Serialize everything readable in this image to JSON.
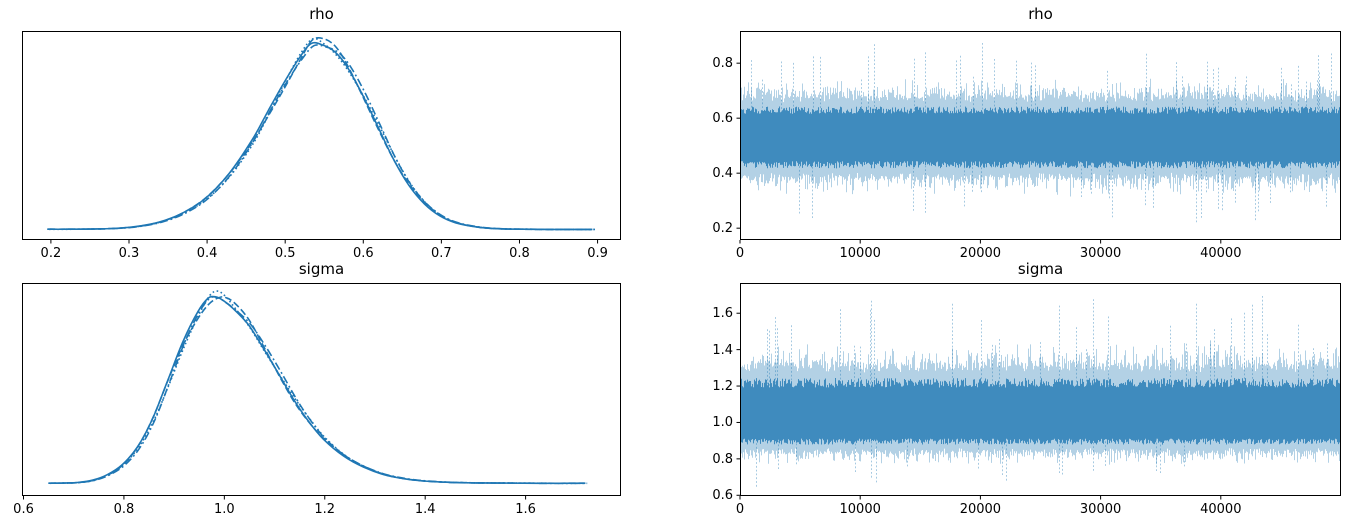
{
  "figure": {
    "background_color": "#ffffff",
    "text_color": "#000000",
    "spine_color": "#000000",
    "accent_color": "#1f77b4"
  },
  "chart_data": [
    {
      "type": "line",
      "id": "rho-density",
      "role": "posterior-kde",
      "title": "rho",
      "xlabel": "",
      "ylabel": "",
      "xlim": [
        0.163,
        0.93
      ],
      "xticks": [
        0.2,
        0.3,
        0.4,
        0.5,
        0.6,
        0.7,
        0.8,
        0.9
      ],
      "xtick_labels": [
        "0.2",
        "0.3",
        "0.4",
        "0.5",
        "0.6",
        "0.7",
        "0.8",
        "0.9"
      ],
      "yticks": [],
      "ytick_labels": [],
      "grid": false,
      "legend": "none",
      "n_chains": 4,
      "line_styles": [
        "solid",
        "dashed",
        "dotted",
        "dashdot"
      ],
      "line_color": "#1f77b4",
      "kde": {
        "x": [
          0.197,
          0.22,
          0.25,
          0.28,
          0.31,
          0.34,
          0.37,
          0.4,
          0.43,
          0.46,
          0.48,
          0.5,
          0.52,
          0.535,
          0.55,
          0.565,
          0.58,
          0.6,
          0.62,
          0.64,
          0.66,
          0.68,
          0.7,
          0.72,
          0.75,
          0.78,
          0.81,
          0.84,
          0.87,
          0.895
        ],
        "density": [
          0.004,
          0.004,
          0.005,
          0.008,
          0.018,
          0.042,
          0.09,
          0.17,
          0.3,
          0.48,
          0.63,
          0.78,
          0.92,
          1.0,
          0.99,
          0.95,
          0.87,
          0.72,
          0.55,
          0.38,
          0.24,
          0.14,
          0.075,
          0.038,
          0.014,
          0.006,
          0.004,
          0.003,
          0.003,
          0.003
        ],
        "peak_x": 0.535
      }
    },
    {
      "type": "line",
      "id": "rho-trace",
      "role": "mcmc-trace",
      "title": "rho",
      "xlabel": "",
      "ylabel": "",
      "xlim": [
        0,
        50000
      ],
      "xticks": [
        0,
        10000,
        20000,
        30000,
        40000
      ],
      "xtick_labels": [
        "0",
        "10000",
        "20000",
        "30000",
        "40000"
      ],
      "ylim": [
        0.157,
        0.917
      ],
      "yticks": [
        0.2,
        0.4,
        0.6,
        0.8
      ],
      "ytick_labels": [
        "0.2",
        "0.4",
        "0.6",
        "0.8"
      ],
      "grid": false,
      "legend": "none",
      "line_color": "#1f77b4",
      "trace": {
        "n_samples": 50000,
        "mean": 0.53,
        "sd": 0.075,
        "min": 0.197,
        "max": 0.895,
        "skew_top": 1.0,
        "skew_bottom": 1.0
      }
    },
    {
      "type": "line",
      "id": "sigma-density",
      "role": "posterior-kde",
      "title": "sigma",
      "xlabel": "",
      "ylabel": "",
      "xlim": [
        0.597,
        1.79
      ],
      "xticks": [
        0.6,
        0.8,
        1.0,
        1.2,
        1.4,
        1.6
      ],
      "xtick_labels": [
        "0.6",
        "0.8",
        "1.0",
        "1.2",
        "1.4",
        "1.6"
      ],
      "yticks": [],
      "ytick_labels": [],
      "grid": false,
      "legend": "none",
      "n_chains": 4,
      "line_styles": [
        "solid",
        "dashed",
        "dotted",
        "dashdot"
      ],
      "line_color": "#1f77b4",
      "kde": {
        "x": [
          0.652,
          0.68,
          0.71,
          0.74,
          0.77,
          0.8,
          0.83,
          0.86,
          0.89,
          0.92,
          0.95,
          0.97,
          0.985,
          1.0,
          1.02,
          1.05,
          1.08,
          1.11,
          1.14,
          1.17,
          1.2,
          1.24,
          1.28,
          1.32,
          1.36,
          1.4,
          1.45,
          1.5,
          1.56,
          1.63,
          1.72
        ],
        "density": [
          0.004,
          0.005,
          0.008,
          0.02,
          0.05,
          0.105,
          0.2,
          0.35,
          0.55,
          0.75,
          0.91,
          0.985,
          1.0,
          0.985,
          0.94,
          0.85,
          0.72,
          0.585,
          0.45,
          0.335,
          0.24,
          0.15,
          0.09,
          0.05,
          0.028,
          0.016,
          0.009,
          0.006,
          0.005,
          0.004,
          0.004
        ],
        "peak_x": 0.985
      }
    },
    {
      "type": "line",
      "id": "sigma-trace",
      "role": "mcmc-trace",
      "title": "sigma",
      "xlabel": "",
      "ylabel": "",
      "xlim": [
        0,
        50000
      ],
      "xticks": [
        0,
        10000,
        20000,
        30000,
        40000
      ],
      "xtick_labels": [
        "0",
        "10000",
        "20000",
        "30000",
        "40000"
      ],
      "ylim": [
        0.596,
        1.766
      ],
      "yticks": [
        0.6,
        0.8,
        1.0,
        1.2,
        1.4,
        1.6
      ],
      "ytick_labels": [
        "0.6",
        "0.8",
        "1.0",
        "1.2",
        "1.4",
        "1.6"
      ],
      "grid": false,
      "legend": "none",
      "line_color": "#1f77b4",
      "trace": {
        "n_samples": 50000,
        "mean": 1.02,
        "sd": 0.115,
        "min": 0.64,
        "max": 1.72,
        "skew_top": 1.3,
        "skew_bottom": 0.82
      }
    }
  ]
}
